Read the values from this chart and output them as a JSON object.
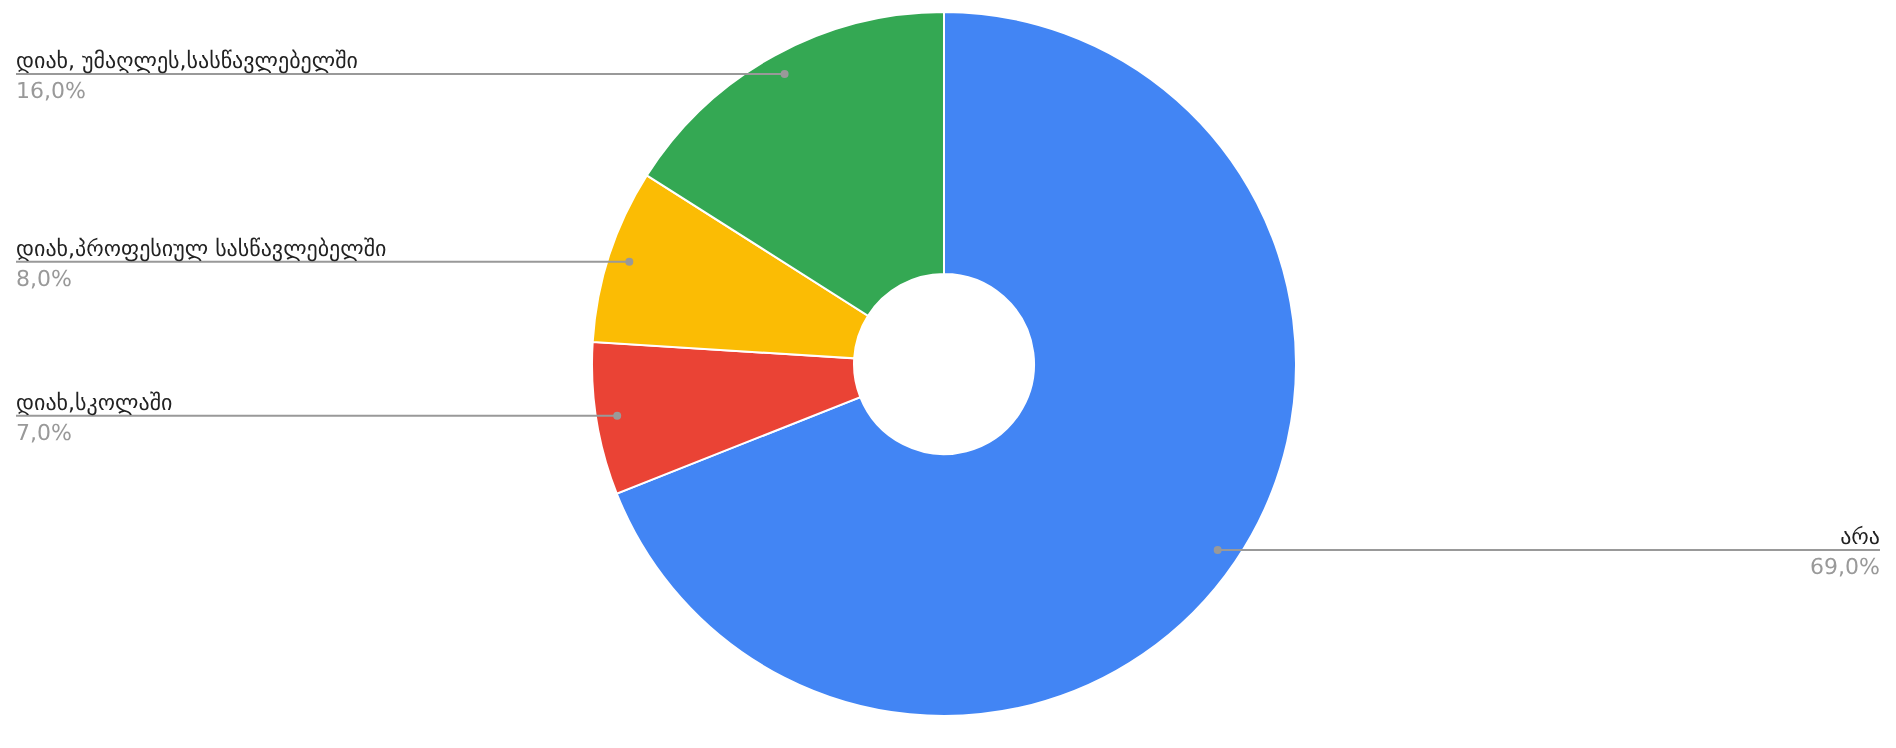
{
  "chart_data": {
    "type": "donut",
    "categories": [
      "არა",
      "დიახ,სკოლაში",
      "დიახ,პროფესიულ სასწავლებელში",
      "დიახ, უმაღლეს,სასწავლებელში"
    ],
    "values": [
      69,
      7,
      8,
      16
    ],
    "colors": [
      "#4285f4",
      "#ea4335",
      "#fbbc04",
      "#34a853"
    ],
    "value_labels": [
      "69,0%",
      "7,0%",
      "8,0%",
      "16,0%"
    ]
  }
}
